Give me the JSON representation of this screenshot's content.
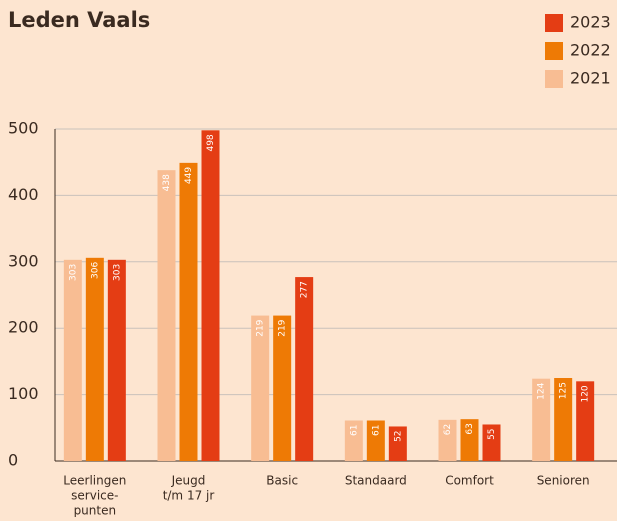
{
  "chart_data": {
    "type": "bar",
    "title": "Leden Vaals",
    "categories": [
      [
        "Leerlingen",
        "service-",
        "punten"
      ],
      [
        "Jeugd",
        "t/m 17 jr"
      ],
      [
        "Basic"
      ],
      [
        "Standaard"
      ],
      [
        "Comfort"
      ],
      [
        "Senioren"
      ]
    ],
    "series": [
      {
        "name": "2021",
        "color": "#f8bd93",
        "values": [
          303,
          438,
          219,
          61,
          62,
          124
        ]
      },
      {
        "name": "2022",
        "color": "#ee7a05",
        "values": [
          306,
          449,
          219,
          61,
          63,
          125
        ]
      },
      {
        "name": "2023",
        "color": "#e43d14",
        "values": [
          303,
          498,
          277,
          52,
          55,
          120
        ]
      }
    ],
    "ylim": [
      0,
      500
    ],
    "yticks": [
      0,
      100,
      200,
      300,
      400,
      500
    ],
    "grid": true,
    "legend": "top-right"
  }
}
